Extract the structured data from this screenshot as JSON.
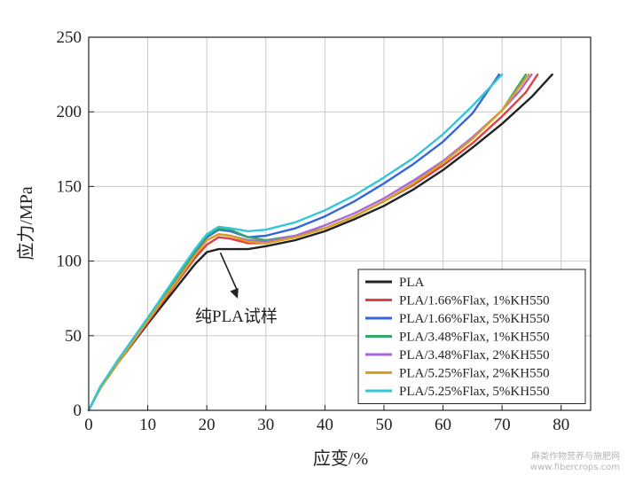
{
  "chart_data": {
    "type": "line",
    "xlabel": "应变/%",
    "ylabel": "应力/MPa",
    "xlim": [
      0,
      85
    ],
    "ylim": [
      0,
      250
    ],
    "xticks": [
      0,
      10,
      20,
      30,
      40,
      50,
      60,
      70,
      80
    ],
    "yticks": [
      0,
      50,
      100,
      150,
      200,
      250
    ],
    "grid": true,
    "legend_position": "bottom-right",
    "annotation": {
      "text": "纯PLA试样",
      "points_to": [
        22,
        108
      ]
    },
    "series": [
      {
        "name": "PLA",
        "color": "#222222",
        "x": [
          0,
          2,
          5,
          10,
          15,
          18,
          20,
          22,
          24,
          27,
          30,
          35,
          40,
          45,
          50,
          55,
          60,
          65,
          70,
          75,
          78.5
        ],
        "y": [
          0,
          15,
          32,
          58,
          83,
          98,
          106,
          108,
          108,
          108,
          110,
          114,
          120,
          128,
          137,
          148,
          161,
          176,
          192,
          210,
          225
        ]
      },
      {
        "name": "PLA/1.66%Flax, 1%KH550",
        "color": "#e04040",
        "x": [
          0,
          2,
          5,
          10,
          15,
          18,
          20,
          22,
          24,
          27,
          30,
          35,
          40,
          45,
          50,
          55,
          60,
          65,
          70,
          74,
          76
        ],
        "y": [
          0,
          15,
          32,
          59,
          86,
          102,
          111,
          116,
          115,
          112,
          112,
          116,
          122,
          130,
          140,
          151,
          164,
          179,
          197,
          213,
          225
        ]
      },
      {
        "name": "PLA/1.66%Flax, 5%KH550",
        "color": "#3366dd",
        "x": [
          0,
          2,
          5,
          10,
          15,
          18,
          20,
          22,
          24,
          27,
          30,
          35,
          40,
          45,
          50,
          55,
          60,
          65,
          69.5
        ],
        "y": [
          0,
          16,
          33,
          61,
          89,
          106,
          116,
          121,
          120,
          116,
          117,
          122,
          130,
          140,
          152,
          165,
          180,
          199,
          225
        ]
      },
      {
        "name": "PLA/3.48%Flax, 1%KH550",
        "color": "#33aa66",
        "x": [
          0,
          2,
          5,
          10,
          15,
          18,
          20,
          22,
          24,
          27,
          30,
          35,
          40,
          45,
          50,
          55,
          60,
          65,
          70,
          74
        ],
        "y": [
          0,
          16,
          33,
          61,
          89,
          107,
          117,
          122,
          121,
          116,
          114,
          117,
          122,
          130,
          140,
          152,
          166,
          182,
          201,
          225
        ]
      },
      {
        "name": "PLA/3.48%Flax, 2%KH550",
        "color": "#aa66dd",
        "x": [
          0,
          2,
          5,
          10,
          15,
          18,
          20,
          22,
          24,
          27,
          30,
          35,
          40,
          45,
          50,
          55,
          60,
          65,
          70,
          73,
          75
        ],
        "y": [
          0,
          15,
          32,
          60,
          87,
          104,
          114,
          118,
          117,
          114,
          113,
          117,
          124,
          132,
          142,
          154,
          167,
          183,
          201,
          214,
          225
        ]
      },
      {
        "name": "PLA/5.25%Flax, 2%KH550",
        "color": "#d9a020",
        "x": [
          0,
          2,
          5,
          10,
          15,
          18,
          20,
          22,
          24,
          27,
          30,
          35,
          40,
          45,
          50,
          55,
          60,
          65,
          70,
          74.5
        ],
        "y": [
          0,
          15,
          32,
          60,
          87,
          104,
          114,
          118,
          117,
          113,
          112,
          116,
          122,
          130,
          140,
          152,
          166,
          182,
          201,
          225
        ]
      },
      {
        "name": "PLA/5.25%Flax, 5%KH550",
        "color": "#33c6d6",
        "x": [
          0,
          2,
          5,
          10,
          15,
          18,
          20,
          22,
          24,
          27,
          30,
          35,
          40,
          45,
          50,
          55,
          60,
          65,
          70
        ],
        "y": [
          0,
          16,
          34,
          62,
          91,
          108,
          118,
          123,
          122,
          120,
          121,
          126,
          134,
          144,
          156,
          169,
          185,
          204,
          225
        ]
      }
    ]
  },
  "watermark": {
    "line1": "麻类作物营养与施肥网",
    "line2": "www.fibercrops.com"
  }
}
